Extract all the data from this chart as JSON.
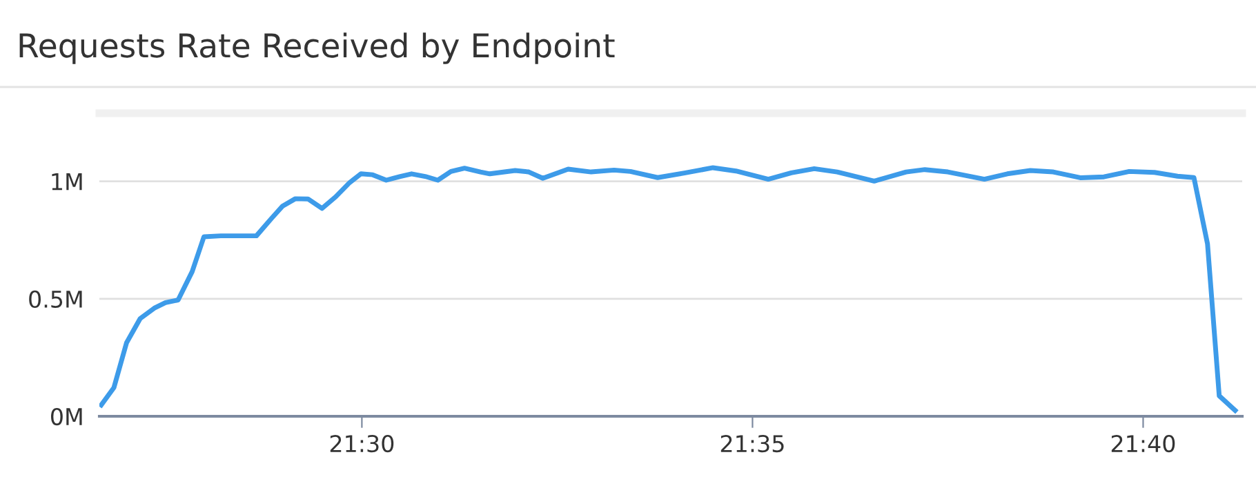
{
  "chart_data": {
    "type": "line",
    "title": "Requests Rate Received by Endpoint",
    "x": [
      21.4444,
      21.4471,
      21.4498,
      21.4527,
      21.4557,
      21.4581,
      21.4608,
      21.4638,
      21.4663,
      21.4699,
      21.4775,
      21.4807,
      21.4831,
      21.4858,
      21.4885,
      21.4915,
      21.4944,
      21.4974,
      21.4998,
      21.5023,
      21.5052,
      21.5082,
      21.5106,
      21.5135,
      21.5162,
      21.519,
      21.5219,
      21.5253,
      21.5273,
      21.5327,
      21.5356,
      21.5386,
      21.544,
      21.5489,
      21.5538,
      21.5573,
      21.5631,
      21.569,
      21.5749,
      21.5798,
      21.5867,
      21.5916,
      21.5965,
      21.6014,
      21.6093,
      21.6161,
      21.6201,
      21.625,
      21.6328,
      21.6377,
      21.6426,
      21.6475,
      21.6534,
      21.6583,
      21.6637,
      21.6691,
      21.674,
      21.6775,
      21.6804,
      21.6829,
      21.6863
    ],
    "series": [
      {
        "color": "#3d9be9",
        "values": [
          0.048,
          0.122,
          0.313,
          0.416,
          0.46,
          0.484,
          0.495,
          0.616,
          0.764,
          0.768,
          0.768,
          0.842,
          0.895,
          0.926,
          0.925,
          0.885,
          0.934,
          0.995,
          1.032,
          1.028,
          1.005,
          1.021,
          1.032,
          1.021,
          1.005,
          1.042,
          1.056,
          1.04,
          1.032,
          1.046,
          1.04,
          1.013,
          1.052,
          1.04,
          1.048,
          1.042,
          1.016,
          1.036,
          1.058,
          1.044,
          1.009,
          1.036,
          1.054,
          1.04,
          1.001,
          1.04,
          1.05,
          1.04,
          1.009,
          1.032,
          1.046,
          1.04,
          1.015,
          1.019,
          1.042,
          1.038,
          1.022,
          1.016,
          0.734,
          0.087,
          0.025
        ]
      }
    ],
    "xlim": [
      21.444,
      21.6878
    ],
    "xticks": [
      {
        "value": 21.5,
        "label": "21:30"
      },
      {
        "value": 21.583333,
        "label": "21:35"
      },
      {
        "value": 21.666667,
        "label": "21:40"
      }
    ],
    "ylim": [
      0,
      1.29
    ],
    "yticks": [
      {
        "value": 0,
        "label": "0M"
      },
      {
        "value": 0.5,
        "label": "0.5M"
      },
      {
        "value": 1,
        "label": "1M"
      }
    ],
    "grid": "y",
    "marker": "none",
    "line_style": "solid"
  }
}
